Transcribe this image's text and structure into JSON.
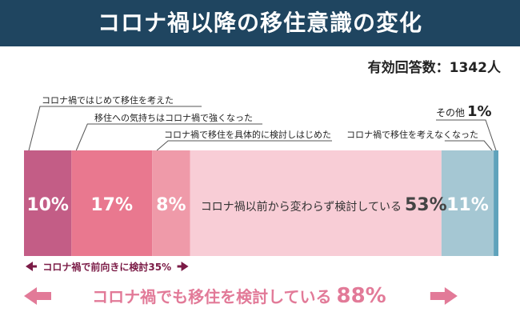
{
  "title": "コロナ禍以降の移住意識の変化",
  "respondents": "有効回答数：1342人",
  "colors": {
    "title_bg": "#1f4560",
    "leader": "#555555",
    "bracket_small": "#7b1b46",
    "bracket_big": "#e27a98"
  },
  "chart_data": {
    "type": "bar",
    "orientation": "horizontal-stacked-100",
    "series": [
      {
        "label": "コロナ禍ではじめて移住を考えた",
        "value": 10,
        "display": "10%",
        "color": "#c35d86"
      },
      {
        "label": "移住への気持ちはコロナ禍で強くなった",
        "value": 17,
        "display": "17%",
        "color": "#e9788f"
      },
      {
        "label": "コロナ禍で移住を具体的に検討しはじめた",
        "value": 8,
        "display": "8%",
        "color": "#ef9aa9"
      },
      {
        "label": "コロナ禍以前から変わらず検討している",
        "value": 53,
        "display": "53%",
        "color": "#f8cdd6"
      },
      {
        "label": "コロナ禍で移住を考えなくなった",
        "value": 11,
        "display": "11%",
        "color": "#a5c7d3"
      },
      {
        "label": "その他",
        "value": 1,
        "display": "1%",
        "color": "#5fa2bb"
      }
    ],
    "brackets": [
      {
        "label": "コロナ禍で前向きに検討35%",
        "from": 0,
        "to": 3
      },
      {
        "label_prefix": "コロナ禍でも移住を検討している",
        "label_value": "88%",
        "from": 0,
        "to": 4
      }
    ]
  }
}
